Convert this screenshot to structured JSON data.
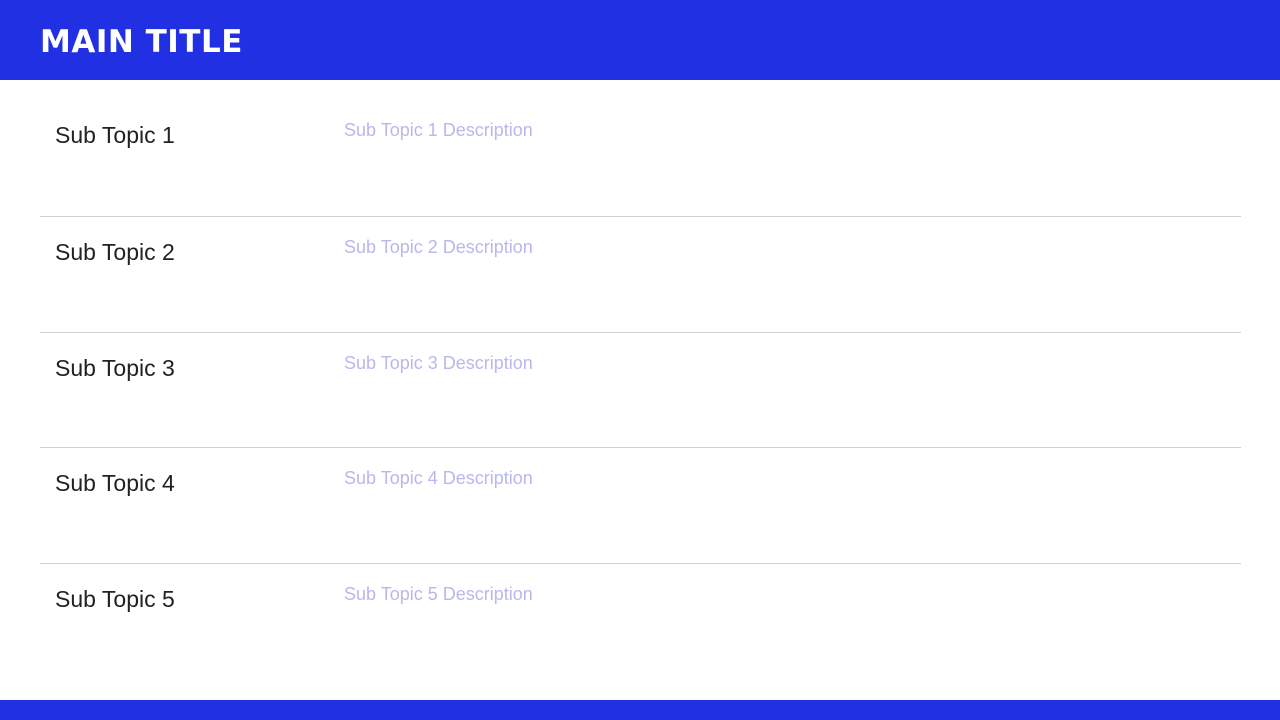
{
  "header": {
    "title": "MAIN TITLE"
  },
  "colors": {
    "accent": "#2030E2",
    "description": "#b8b8ee",
    "divider": "#cfcfcf"
  },
  "rows": [
    {
      "topic": "Sub Topic 1",
      "description": "Sub Topic 1 Description"
    },
    {
      "topic": "Sub Topic 2",
      "description": "Sub Topic 2 Description"
    },
    {
      "topic": "Sub Topic 3",
      "description": "Sub Topic 3 Description"
    },
    {
      "topic": "Sub Topic 4",
      "description": "Sub Topic 4 Description"
    },
    {
      "topic": "Sub Topic 5",
      "description": "Sub Topic 5 Description"
    }
  ]
}
